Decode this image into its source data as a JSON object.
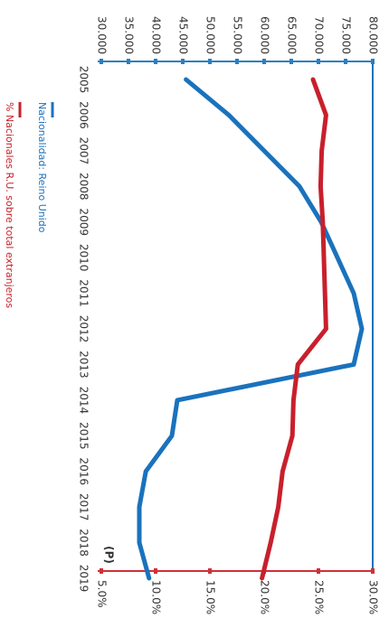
{
  "chart_data": {
    "type": "line",
    "orientation": "rotated-90-clockwise",
    "categories": [
      "2005",
      "2006",
      "2007",
      "2008",
      "2009",
      "2010",
      "2011",
      "2012",
      "2013",
      "2014",
      "2015",
      "2016",
      "2017",
      "2018",
      "2019"
    ],
    "category_note": "(P)",
    "left_axis": {
      "ticks": [
        "30.000",
        "35.000",
        "40.000",
        "45.000",
        "50.000",
        "55.000",
        "60.000",
        "65.000",
        "70.000",
        "75.000",
        "80.000"
      ],
      "ylim": [
        30000,
        80000
      ],
      "color": "#2a7fc1"
    },
    "right_axis": {
      "ticks": [
        "5.0%",
        "10.0%",
        "15.0%",
        "20.0%",
        "25.0%",
        "30.0%"
      ],
      "ylim": [
        5.0,
        30.0
      ],
      "color": "#d0303a"
    },
    "series": [
      {
        "name": "Nacionalidad: Reino Unido",
        "axis": "left",
        "color": "#1a72bd",
        "values": [
          45600,
          53500,
          60000,
          66500,
          70500,
          73500,
          76500,
          78000,
          76500,
          44000,
          43000,
          38200,
          37000,
          37000,
          38800
        ]
      },
      {
        "name": "% Nacionales R.U. sobre total extranjeros",
        "axis": "right",
        "color": "#c8202c",
        "values": [
          24.5,
          25.7,
          25.3,
          25.2,
          25.4,
          25.5,
          25.6,
          25.7,
          23.1,
          22.7,
          22.6,
          21.7,
          21.3,
          20.6,
          19.8
        ]
      }
    ],
    "legend_position": "bottom-left"
  }
}
